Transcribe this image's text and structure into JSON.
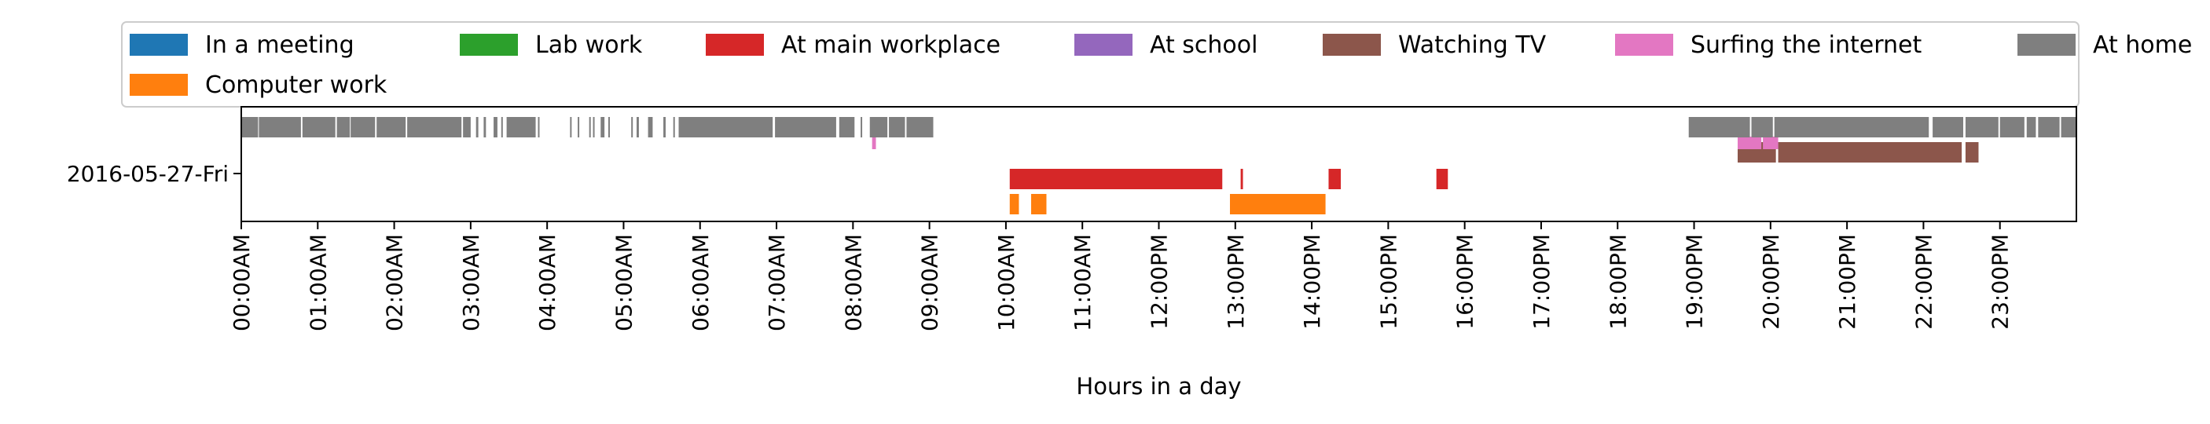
{
  "chart_data": {
    "type": "timeline",
    "title": "",
    "xlabel": "Hours in a day",
    "ylabel": "",
    "xlim": [
      0,
      24
    ],
    "grid": false,
    "legend_position": "top",
    "row_label": "2016-05-27-Fri",
    "x_tick_labels": [
      "00:00AM",
      "01:00AM",
      "02:00AM",
      "03:00AM",
      "04:00AM",
      "05:00AM",
      "06:00AM",
      "07:00AM",
      "08:00AM",
      "09:00AM",
      "10:00AM",
      "11:00AM",
      "12:00PM",
      "13:00PM",
      "14:00PM",
      "15:00PM",
      "16:00PM",
      "17:00PM",
      "18:00PM",
      "19:00PM",
      "20:00PM",
      "21:00PM",
      "22:00PM",
      "23:00PM"
    ],
    "series": [
      {
        "name": "In a meeting",
        "color": "#1f77b4",
        "segments": []
      },
      {
        "name": "Computer work",
        "color": "#ff7f0e",
        "segments": [
          [
            10.05,
            10.17
          ],
          [
            10.33,
            10.53
          ],
          [
            12.93,
            14.18
          ]
        ]
      },
      {
        "name": "Lab work",
        "color": "#2ca02c",
        "segments": []
      },
      {
        "name": "At main workplace",
        "color": "#d62728",
        "segments": [
          [
            10.05,
            12.83
          ],
          [
            13.07,
            13.1
          ],
          [
            14.22,
            14.38
          ],
          [
            15.63,
            15.78
          ]
        ]
      },
      {
        "name": "At school",
        "color": "#9467bd",
        "segments": []
      },
      {
        "name": "Watching TV",
        "color": "#8c564b",
        "segments": [
          [
            19.57,
            20.07
          ],
          [
            20.1,
            22.5
          ],
          [
            22.55,
            22.72
          ]
        ]
      },
      {
        "name": "Surfing the internet",
        "color": "#e377c2",
        "segments": [
          [
            8.25,
            8.3
          ],
          [
            19.57,
            19.88
          ],
          [
            19.9,
            20.1
          ]
        ]
      },
      {
        "name": "At home",
        "color": "#7f7f7f",
        "segments": [
          [
            0,
            0.22
          ],
          [
            0.23,
            0.78
          ],
          [
            0.8,
            1.23
          ],
          [
            1.25,
            1.42
          ],
          [
            1.43,
            1.75
          ],
          [
            1.77,
            2.15
          ],
          [
            2.17,
            2.88
          ],
          [
            2.9,
            3.0
          ],
          [
            3.07,
            3.1
          ],
          [
            3.17,
            3.2
          ],
          [
            3.3,
            3.35
          ],
          [
            3.4,
            3.42
          ],
          [
            3.47,
            3.85
          ],
          [
            3.88,
            3.9
          ],
          [
            4.3,
            4.32
          ],
          [
            4.4,
            4.42
          ],
          [
            4.55,
            4.57
          ],
          [
            4.6,
            4.62
          ],
          [
            4.7,
            4.75
          ],
          [
            4.8,
            4.82
          ],
          [
            5.1,
            5.12
          ],
          [
            5.17,
            5.2
          ],
          [
            5.32,
            5.38
          ],
          [
            5.52,
            5.55
          ],
          [
            5.65,
            5.67
          ],
          [
            5.72,
            6.95
          ],
          [
            6.98,
            7.78
          ],
          [
            7.82,
            8.02
          ],
          [
            8.1,
            8.12
          ],
          [
            8.22,
            8.45
          ],
          [
            8.47,
            8.68
          ],
          [
            8.7,
            9.05
          ],
          [
            18.93,
            19.73
          ],
          [
            19.75,
            20.03
          ],
          [
            20.05,
            22.07
          ],
          [
            22.12,
            22.52
          ],
          [
            22.55,
            22.98
          ],
          [
            23.0,
            23.32
          ],
          [
            23.35,
            23.47
          ],
          [
            23.5,
            23.78
          ],
          [
            23.8,
            24.0
          ]
        ]
      }
    ]
  }
}
